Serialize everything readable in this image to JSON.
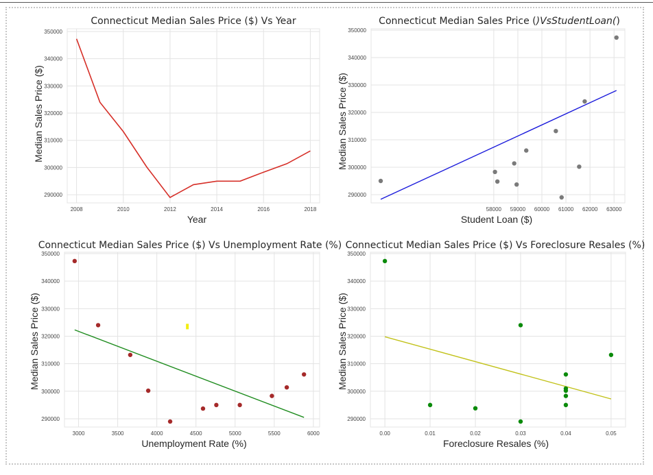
{
  "colors": {
    "year_line": "#d62f28",
    "student_points": "#7a7a7a",
    "student_fit": "#1a1adb",
    "unemp_points": "#a52a2a",
    "unemp_fit": "#1f8c1f",
    "foreclosure_points": "#0a8a0a",
    "foreclosure_fit": "#c2c21a",
    "marker_yellow": "#f2ee10"
  },
  "chart_data": [
    {
      "type": "line",
      "title": "Connecticut Median Sales Price ($) Vs Year",
      "xlabel": "Year",
      "ylabel": "Median Sales Price ($)",
      "xlim": [
        2007.6,
        2018.4
      ],
      "ylim": [
        287000,
        351000
      ],
      "xticks": [
        2008,
        2010,
        2012,
        2014,
        2016,
        2018
      ],
      "yticks": [
        290000,
        300000,
        310000,
        320000,
        330000,
        340000,
        350000
      ],
      "grid": true,
      "series": [
        {
          "x": [
            2008,
            2009,
            2010,
            2011,
            2012,
            2013,
            2014,
            2015,
            2016,
            2017,
            2018
          ],
          "y": [
            347300,
            324000,
            313200,
            300200,
            289000,
            293700,
            295000,
            295000,
            298300,
            301400,
            306100
          ]
        }
      ]
    },
    {
      "type": "scatter",
      "title_parts": [
        "Connecticut Median Sales Price (",
        ")VsStudentLoan(",
        ")"
      ],
      "xlabel": "Student Loan ($)",
      "ylabel": "Median Sales Price ($)",
      "xlim": [
        52900,
        63450
      ],
      "ylim": [
        287000,
        350500
      ],
      "xticks": [
        58000,
        59000,
        60000,
        61000,
        62000,
        63000
      ],
      "yticks": [
        290000,
        300000,
        310000,
        320000,
        330000,
        340000,
        350000
      ],
      "grid": true,
      "points": {
        "x": [
          53300,
          58050,
          58150,
          58850,
          58950,
          59350,
          60580,
          60820,
          61550,
          61780,
          63100
        ],
        "y": [
          295000,
          298300,
          294800,
          301400,
          293700,
          306100,
          313200,
          289000,
          300200,
          324000,
          347300
        ]
      },
      "fit": {
        "x": [
          53300,
          63100
        ],
        "y": [
          288300,
          328000
        ]
      }
    },
    {
      "type": "scatter",
      "title": "Connecticut Median Sales Price ($) Vs Unemployment Rate (%)",
      "xlabel": "Unemployment Rate (%)",
      "ylabel": "Median Sales Price ($)",
      "xlim": [
        2820,
        6080
      ],
      "ylim": [
        287000,
        350500
      ],
      "xticks": [
        3000,
        3500,
        4000,
        4500,
        5000,
        5500,
        6000
      ],
      "yticks": [
        290000,
        300000,
        310000,
        320000,
        330000,
        340000,
        350000
      ],
      "grid": true,
      "points": {
        "x": [
          2950,
          3250,
          3660,
          3890,
          4170,
          4590,
          4760,
          5060,
          5470,
          5660,
          5880
        ],
        "y": [
          347300,
          324000,
          313200,
          300200,
          289000,
          293700,
          295000,
          295000,
          298300,
          301400,
          306100
        ]
      },
      "fit": {
        "x": [
          2950,
          5880
        ],
        "y": [
          322300,
          290500
        ]
      },
      "annotation": {
        "type": "yellow-marker",
        "x": 4390,
        "y": [
          322700,
          324500
        ]
      }
    },
    {
      "type": "scatter",
      "title": "Connecticut Median Sales Price ($) Vs Foreclosure Resales (%)",
      "xlabel": "Foreclosure Resales (%)",
      "ylabel": "Median Sales Price ($)",
      "xlim": [
        -0.0032,
        0.0532
      ],
      "ylim": [
        287000,
        350500
      ],
      "xticks": [
        0.0,
        0.01,
        0.02,
        0.03,
        0.04,
        0.05
      ],
      "xtick_labels": [
        "0.00",
        "0.01",
        "0.02",
        "0.03",
        "0.04",
        "0.05"
      ],
      "yticks": [
        290000,
        300000,
        310000,
        320000,
        330000,
        340000,
        350000
      ],
      "grid": true,
      "points": {
        "x": [
          0.0,
          0.01,
          0.02,
          0.03,
          0.03,
          0.04,
          0.04,
          0.04,
          0.04,
          0.04,
          0.05
        ],
        "y": [
          347300,
          295000,
          293800,
          324000,
          289000,
          306100,
          301000,
          300200,
          298300,
          295000,
          313200
        ]
      },
      "fit": {
        "x": [
          0.0,
          0.05
        ],
        "y": [
          319800,
          297200
        ]
      }
    }
  ]
}
